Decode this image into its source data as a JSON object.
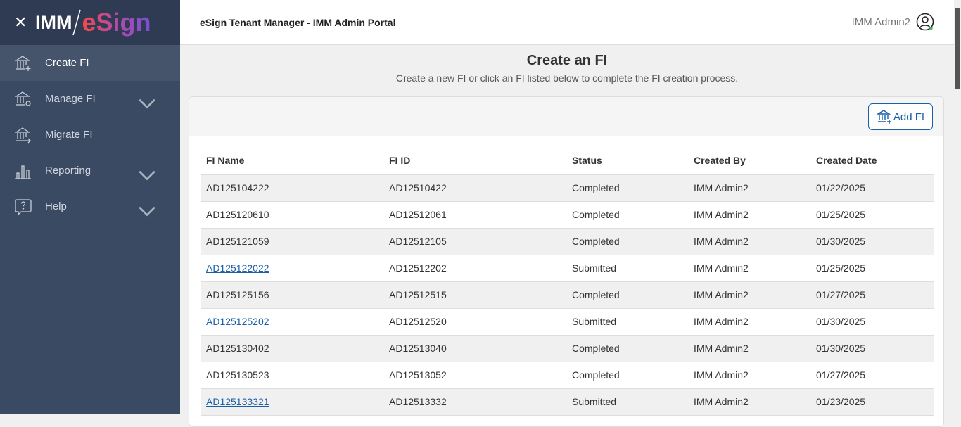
{
  "sidebar": {
    "logo_text_1": "IMM",
    "logo_text_2": "eSign",
    "items": [
      {
        "label": "Create FI",
        "icon": "bank-plus-icon",
        "active": true
      },
      {
        "label": "Manage FI",
        "icon": "bank-gear-icon",
        "expandable": true
      },
      {
        "label": "Migrate FI",
        "icon": "bank-arrow-icon"
      },
      {
        "label": "Reporting",
        "icon": "bar-chart-icon",
        "expandable": true
      },
      {
        "label": "Help",
        "icon": "help-bubble-icon",
        "expandable": true
      }
    ]
  },
  "header": {
    "title": "eSign Tenant Manager - IMM Admin Portal",
    "user": "IMM Admin2",
    "status_color": "#2eb85c"
  },
  "page": {
    "title": "Create an FI",
    "subtitle": "Create a new FI or click an FI listed below to complete the FI creation process.",
    "add_button": "Add FI"
  },
  "table": {
    "columns": [
      "FI Name",
      "FI ID",
      "Status",
      "Created By",
      "Created Date"
    ],
    "rows": [
      {
        "name": "AD125104222",
        "id": "AD12510422",
        "status": "Completed",
        "by": "IMM Admin2",
        "date": "01/22/2025",
        "link": false
      },
      {
        "name": "AD125120610",
        "id": "AD12512061",
        "status": "Completed",
        "by": "IMM Admin2",
        "date": "01/25/2025",
        "link": false
      },
      {
        "name": "AD125121059",
        "id": "AD12512105",
        "status": "Completed",
        "by": "IMM Admin2",
        "date": "01/30/2025",
        "link": false
      },
      {
        "name": "AD125122022",
        "id": "AD12512202",
        "status": "Submitted",
        "by": "IMM Admin2",
        "date": "01/25/2025",
        "link": true
      },
      {
        "name": "AD125125156",
        "id": "AD12512515",
        "status": "Completed",
        "by": "IMM Admin2",
        "date": "01/27/2025",
        "link": false
      },
      {
        "name": "AD125125202",
        "id": "AD12512520",
        "status": "Submitted",
        "by": "IMM Admin2",
        "date": "01/30/2025",
        "link": true
      },
      {
        "name": "AD125130402",
        "id": "AD12513040",
        "status": "Completed",
        "by": "IMM Admin2",
        "date": "01/30/2025",
        "link": false
      },
      {
        "name": "AD125130523",
        "id": "AD12513052",
        "status": "Completed",
        "by": "IMM Admin2",
        "date": "01/27/2025",
        "link": false
      },
      {
        "name": "AD125133321",
        "id": "AD12513332",
        "status": "Submitted",
        "by": "IMM Admin2",
        "date": "01/23/2025",
        "link": true
      }
    ]
  }
}
